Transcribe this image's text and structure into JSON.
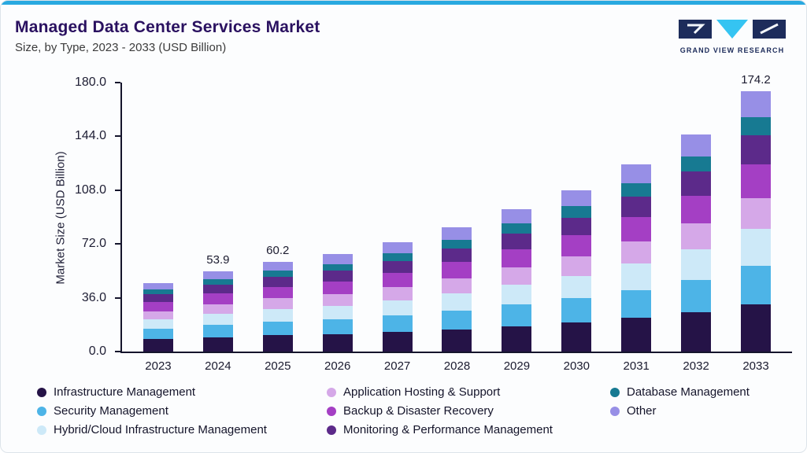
{
  "header": {
    "title": "Managed Data Center Services Market",
    "subtitle": "Size, by Type, 2023 - 2033 (USD Billion)"
  },
  "logo": {
    "text": "GRAND VIEW RESEARCH"
  },
  "colors": {
    "top_strip": "#29a9e0",
    "axis": "#15152c",
    "title": "#2a1160"
  },
  "chart_data": {
    "type": "bar",
    "stacked": true,
    "title": "Managed Data Center Services Market Size, by Type, 2023 - 2033 (USD Billion)",
    "xlabel": "",
    "ylabel": "Market Size (USD Billion)",
    "ylim": [
      0,
      180
    ],
    "yticks": [
      0,
      36,
      72,
      108,
      144,
      180
    ],
    "grid": false,
    "legend_position": "bottom",
    "categories": [
      "2023",
      "2024",
      "2025",
      "2026",
      "2027",
      "2028",
      "2029",
      "2030",
      "2031",
      "2032",
      "2033"
    ],
    "bar_total_labels": {
      "2024": "53.9",
      "2025": "60.2",
      "2033": "174.2"
    },
    "series": [
      {
        "name": "Infrastructure Management",
        "color": "#251347",
        "values": [
          8.3,
          9.7,
          11.0,
          11.7,
          13.1,
          14.9,
          17.1,
          19.4,
          22.5,
          26.1,
          31.4
        ]
      },
      {
        "name": "Security Management",
        "color": "#4db4e7",
        "values": [
          6.9,
          8.1,
          9.0,
          9.8,
          11.0,
          12.5,
          14.3,
          16.2,
          18.8,
          21.8,
          26.1
        ]
      },
      {
        "name": "Hybrid/Cloud Infrastructure Management",
        "color": "#cde9f8",
        "values": [
          6.4,
          7.5,
          8.4,
          9.1,
          10.2,
          11.6,
          13.3,
          15.1,
          17.5,
          20.3,
          24.4
        ]
      },
      {
        "name": "Application Hosting & Support",
        "color": "#d5a8e8",
        "values": [
          5.5,
          6.5,
          7.2,
          7.8,
          8.8,
          10.0,
          11.4,
          13.0,
          15.0,
          17.4,
          20.9
        ]
      },
      {
        "name": "Backup & Disaster Recovery",
        "color": "#a43fc4",
        "values": [
          6.0,
          7.0,
          7.8,
          8.5,
          9.5,
          10.8,
          12.4,
          14.0,
          16.3,
          18.9,
          22.6
        ]
      },
      {
        "name": "Monitoring & Performance Management",
        "color": "#5c2a8a",
        "values": [
          5.1,
          5.9,
          6.6,
          7.2,
          8.0,
          9.1,
          10.5,
          11.9,
          13.8,
          16.0,
          19.2
        ]
      },
      {
        "name": "Database Management",
        "color": "#177a92",
        "values": [
          3.2,
          3.8,
          4.2,
          4.6,
          5.1,
          5.8,
          6.7,
          7.6,
          8.8,
          10.2,
          12.2
        ]
      },
      {
        "name": "Other",
        "color": "#978fe6",
        "values": [
          4.6,
          5.4,
          6.0,
          6.5,
          7.3,
          8.3,
          9.5,
          10.8,
          12.5,
          14.5,
          17.4
        ]
      }
    ]
  },
  "legend": {
    "columns": [
      [
        "Infrastructure Management",
        "Security Management",
        "Hybrid/Cloud Infrastructure Management"
      ],
      [
        "Application Hosting & Support",
        "Backup & Disaster Recovery",
        "Monitoring & Performance Management"
      ],
      [
        "Database Management",
        "Other"
      ]
    ]
  }
}
